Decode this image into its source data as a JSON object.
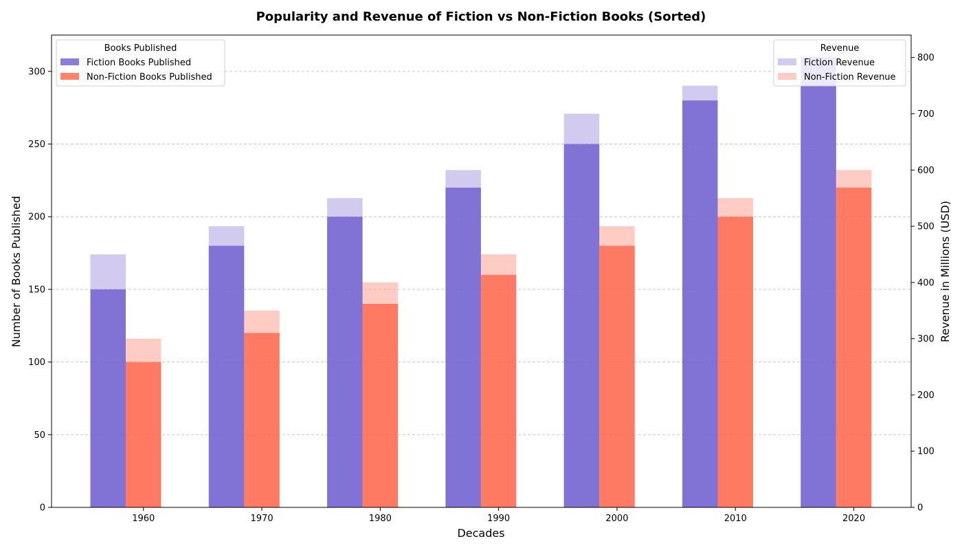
{
  "chart_data": {
    "type": "bar",
    "title": "Popularity and Revenue of Fiction vs Non-Fiction Books (Sorted)",
    "xlabel": "Decades",
    "ylabel": "Number of Books Published",
    "y2label": "Revenue in Millions (USD)",
    "categories": [
      "1960",
      "1970",
      "1980",
      "1990",
      "2000",
      "2010",
      "2020"
    ],
    "ylim": [
      0,
      325
    ],
    "y2lim": [
      0,
      840
    ],
    "yticks": [
      0,
      50,
      100,
      150,
      200,
      250,
      300
    ],
    "y2ticks": [
      0,
      100,
      200,
      300,
      400,
      500,
      600,
      700,
      800
    ],
    "grid": true,
    "series": [
      {
        "name": "Fiction Books Published",
        "axis": "left",
        "color": "#6a5acd",
        "values": [
          150,
          180,
          200,
          220,
          250,
          280,
          310
        ]
      },
      {
        "name": "Non-Fiction Books Published",
        "axis": "left",
        "color": "#ff6347",
        "values": [
          100,
          120,
          140,
          160,
          180,
          200,
          220
        ]
      },
      {
        "name": "Fiction Revenue",
        "axis": "right",
        "color": "#b6a8e4",
        "values": [
          450,
          500,
          550,
          600,
          700,
          750,
          800
        ]
      },
      {
        "name": "Non-Fiction Revenue",
        "axis": "right",
        "color": "#ffaa9c",
        "values": [
          300,
          350,
          400,
          450,
          500,
          550,
          600
        ]
      }
    ],
    "legends": [
      {
        "title": "Books Published",
        "placement": "top-left",
        "entries": [
          "Fiction Books Published",
          "Non-Fiction Books Published"
        ]
      },
      {
        "title": "Revenue",
        "placement": "top-right",
        "entries": [
          "Fiction Revenue",
          "Non-Fiction Revenue"
        ]
      }
    ]
  }
}
